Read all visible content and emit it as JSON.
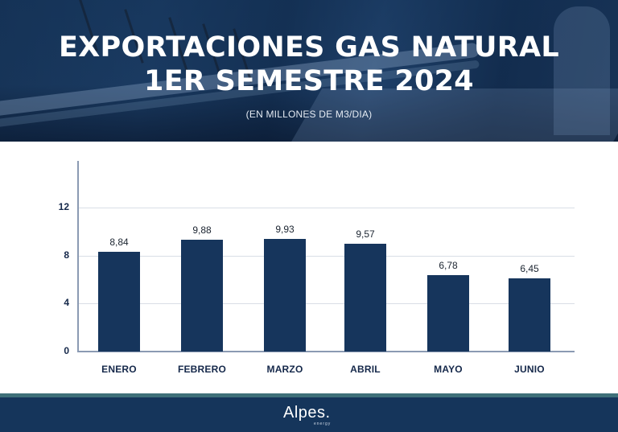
{
  "header": {
    "title_line1": "EXPORTACIONES GAS NATURAL",
    "title_line2": "1ER SEMESTRE 2024",
    "subtitle": "(EN MILLONES DE M3/DIA)"
  },
  "footer": {
    "logo_text": "Alpes.",
    "logo_subtext": "energy"
  },
  "colors": {
    "bar": "#16355c",
    "header_overlay": "#1a3a62",
    "footer": "#15355b",
    "footer_stripe": "#3f7079",
    "axis": "#8b9ab3",
    "grid": "#d9dee6"
  },
  "chart_data": {
    "type": "bar",
    "title": "EXPORTACIONES GAS NATURAL 1ER SEMESTRE 2024",
    "subtitle": "(EN MILLONES DE M3/DIA)",
    "categories": [
      "ENERO",
      "FEBRERO",
      "MARZO",
      "ABRIL",
      "MAYO",
      "JUNIO"
    ],
    "values": [
      8.84,
      9.88,
      9.93,
      9.57,
      6.78,
      6.45
    ],
    "value_labels": [
      "8,84",
      "9,88",
      "9,93",
      "9,57",
      "6,78",
      "6,45"
    ],
    "xlabel": "",
    "ylabel": "",
    "yticks": [
      "0",
      "4",
      "8",
      "12"
    ],
    "ylim": [
      0,
      16
    ],
    "grid": true,
    "legend": null
  }
}
